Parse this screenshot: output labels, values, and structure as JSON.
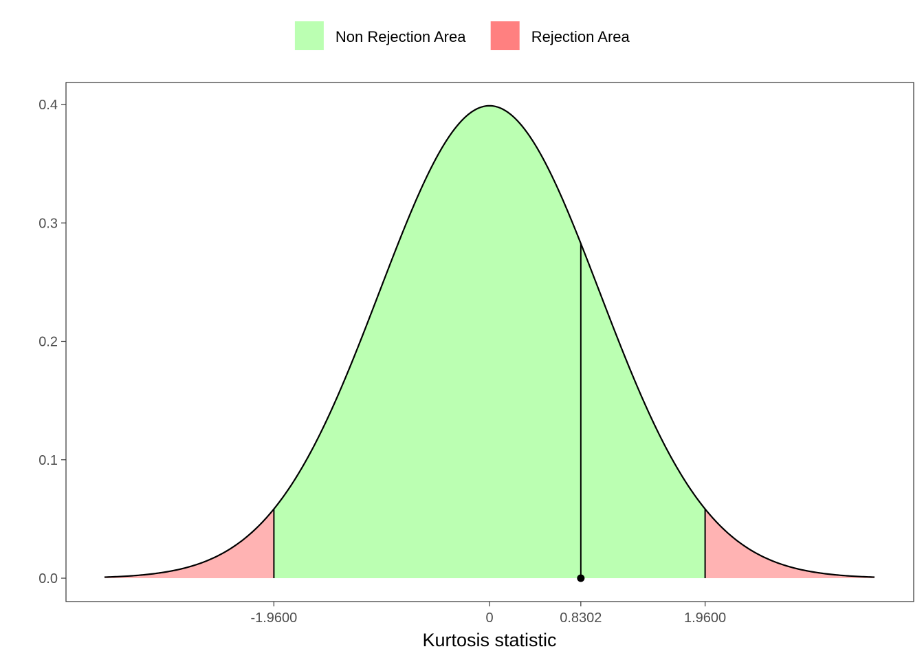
{
  "chart_data": {
    "type": "area",
    "distribution": "standard-normal-density",
    "xlabel": "Kurtosis statistic",
    "ylabel": "",
    "xlim": [
      -3.5,
      3.5
    ],
    "ylim": [
      0,
      0.4
    ],
    "x_ticks": [
      -1.96,
      0,
      0.8302,
      1.96
    ],
    "x_tick_labels": [
      "-1.9600",
      "0",
      "0.8302",
      "1.9600"
    ],
    "y_ticks": [
      0.0,
      0.1,
      0.2,
      0.3,
      0.4
    ],
    "y_tick_labels": [
      "0.0",
      "0.1",
      "0.2",
      "0.3",
      "0.4"
    ],
    "critical_values": [
      -1.96,
      1.96
    ],
    "test_statistic": 0.8302,
    "regions": [
      {
        "name": "Non Rejection Area",
        "from": -1.96,
        "to": 1.96,
        "color": "#bbffb2"
      },
      {
        "name": "Rejection Area",
        "from": -3.5,
        "to": -1.96,
        "color": "#ffb3b3"
      },
      {
        "name": "Rejection Area",
        "from": 1.96,
        "to": 3.5,
        "color": "#ffb3b3"
      }
    ],
    "legend": {
      "position": "top",
      "entries": [
        {
          "label": "Non Rejection Area",
          "color": "#bbffb2"
        },
        {
          "label": "Rejection Area",
          "color": "#ff8080"
        }
      ]
    },
    "grid": false
  }
}
